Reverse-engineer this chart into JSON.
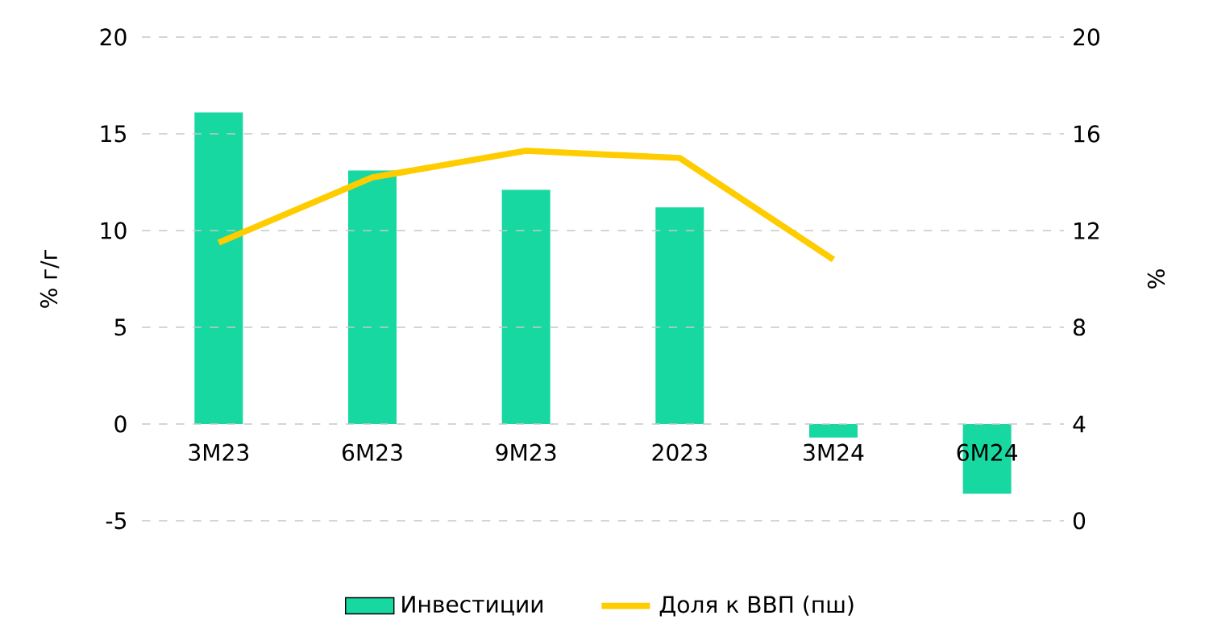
{
  "chart_data": {
    "type": "bar",
    "categories": [
      "3M23",
      "6M23",
      "9M23",
      "2023",
      "3M24",
      "6M24"
    ],
    "ylabel": "% г/г",
    "y2label": "%",
    "ylim": [
      -5,
      20
    ],
    "yticks": [
      -5,
      0,
      5,
      10,
      15,
      20
    ],
    "y2lim": [
      0,
      20
    ],
    "y2ticks": [
      0,
      4,
      8,
      12,
      16,
      20
    ],
    "grid": "y",
    "legend": "bottom",
    "series": [
      {
        "name": "Инвестиции",
        "color": "#17d8a0",
        "values": [
          16.1,
          13.1,
          12.1,
          11.2,
          -0.7,
          -3.6
        ]
      },
      {
        "name": "Доля к ВВП (пш)",
        "type": "line",
        "axis": "y2",
        "color": "#ffcc00",
        "values": [
          11.5,
          14.2,
          15.3,
          15.0,
          10.8,
          null
        ]
      }
    ]
  }
}
